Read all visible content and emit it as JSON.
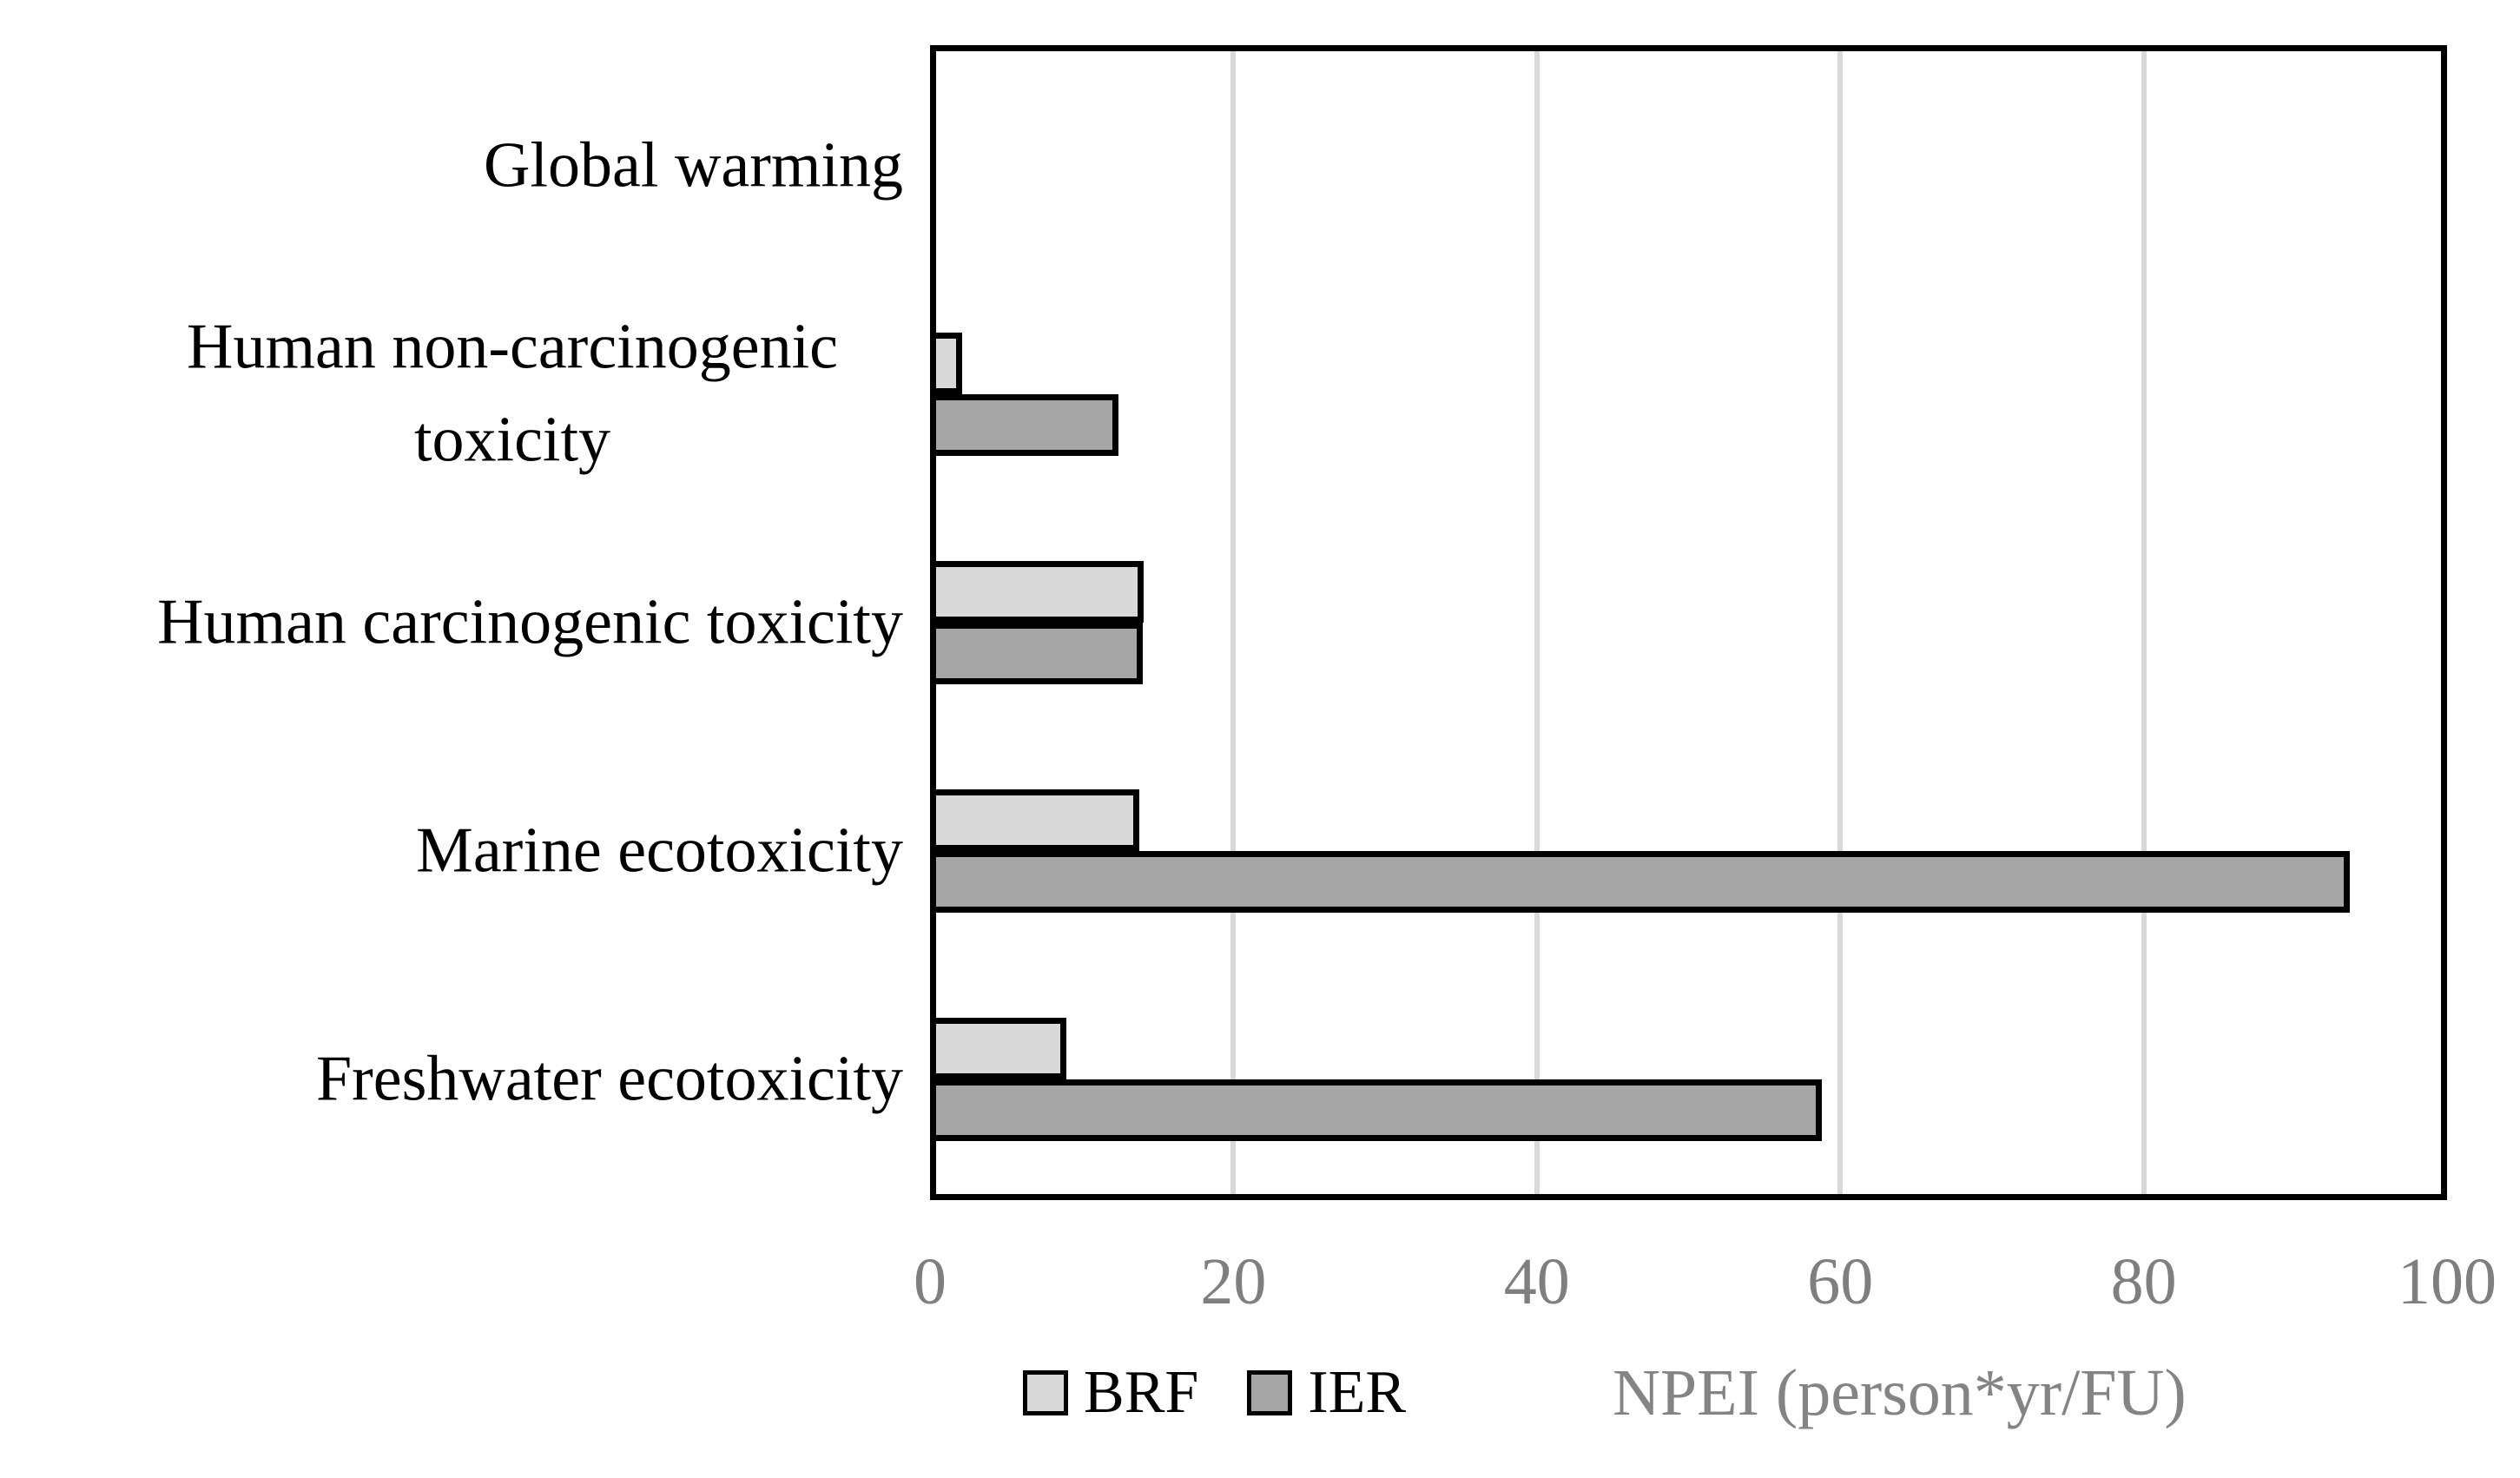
{
  "figure": {
    "background": "#ffffff"
  },
  "chart_data": {
    "type": "bar",
    "orientation": "horizontal",
    "title": "",
    "categories": [
      "Global warming",
      "Human non-carcinogenic toxicity",
      "Human carcinogenic toxicity",
      "Marine ecotoxicity",
      "Freshwater ecotoxicity"
    ],
    "series": [
      {
        "name": "BRF",
        "color": "#d9d9d9",
        "border_color": "#000000",
        "values": [
          0.15,
          2.1,
          14.1,
          13.8,
          9.0
        ]
      },
      {
        "name": "IER",
        "color": "#a6a6a6",
        "border_color": "#000000",
        "values": [
          0.15,
          12.4,
          14.0,
          93.6,
          58.8
        ]
      }
    ],
    "xlabel": "NPEI (person*yr/FU)",
    "xlim": [
      0,
      100
    ],
    "xticks": [
      "0",
      "20",
      "40",
      "60",
      "80",
      "100"
    ],
    "grid": true,
    "gridline_color": "#d9d9d9",
    "tick_color": "#7f7f7f",
    "axis_label_color": "#848484",
    "plot_border_color": "#000000",
    "legend_position": "bottom"
  }
}
